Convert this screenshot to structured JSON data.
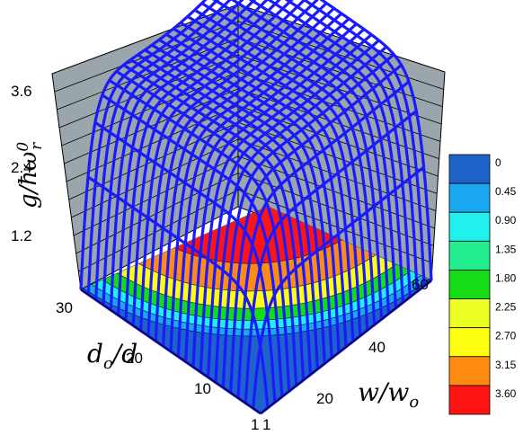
{
  "chart_data": {
    "type": "surface",
    "title": "",
    "zlabel": {
      "main": "g/ħω",
      "sup": "0",
      "sub": "r"
    },
    "xlabel": {
      "main": "d",
      "sub": "o",
      "rest": "/d"
    },
    "ylabel": {
      "main": "w/w",
      "sub": "o"
    },
    "x_ticks": [
      "30",
      "20",
      "10",
      "1"
    ],
    "y_ticks": [
      "1",
      "20",
      "40",
      "60"
    ],
    "z_ticks": [
      "3.6",
      "2.4",
      "1.2"
    ],
    "xlim": [
      1,
      30
    ],
    "ylim": [
      1,
      60
    ],
    "zlim": [
      0,
      3.6
    ],
    "surface_color": "#1a1aff",
    "wall_color": "#9aa6ab",
    "colorbar": {
      "levels": [
        "0",
        "0.45",
        "0.90",
        "1.35",
        "1.80",
        "2.25",
        "2.70",
        "3.15",
        "3.60"
      ],
      "colors": [
        "#1e63c8",
        "#1aa9f0",
        "#22f0ee",
        "#22ee8f",
        "#15dd15",
        "#ebff24",
        "#ffff10",
        "#ff8c12",
        "#ff1414"
      ]
    },
    "floor_contour_colors": [
      "#ff1414",
      "#ff8c12",
      "#ffff10",
      "#15dd15",
      "#22f0ee",
      "#1aa9f0"
    ]
  }
}
